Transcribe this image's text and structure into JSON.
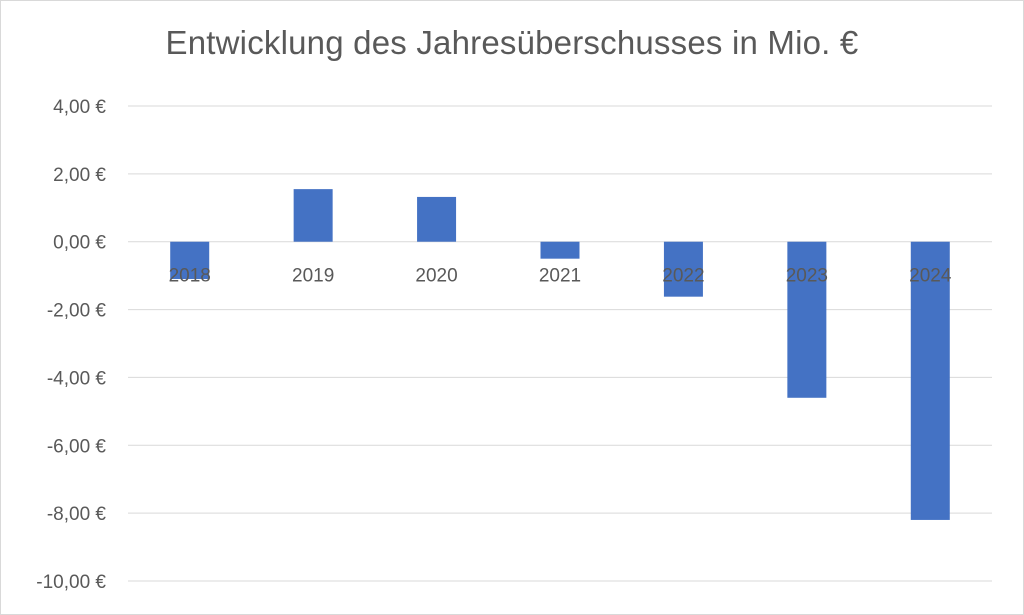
{
  "chart_data": {
    "type": "bar",
    "title": "Entwicklung des Jahresüberschusses in Mio. €",
    "categories": [
      "2018",
      "2019",
      "2020",
      "2021",
      "2022",
      "2023",
      "2024"
    ],
    "values": [
      -1.1,
      1.55,
      1.32,
      -0.5,
      -1.62,
      -4.6,
      -8.2
    ],
    "xlabel": "",
    "ylabel": "",
    "ylim": [
      -10,
      4
    ],
    "yticks": [
      4,
      2,
      0,
      -2,
      -4,
      -6,
      -8,
      -10
    ],
    "ytick_labels": [
      "4,00 €",
      "2,00 €",
      "0,00 €",
      "-2,00 €",
      "-4,00 €",
      "-6,00 €",
      "-8,00 €",
      "-10,00 €"
    ],
    "grid": true,
    "legend": "none",
    "bar_color": "#4472c4",
    "gridline_color": "#d9d9d9",
    "text_color": "#595959"
  }
}
